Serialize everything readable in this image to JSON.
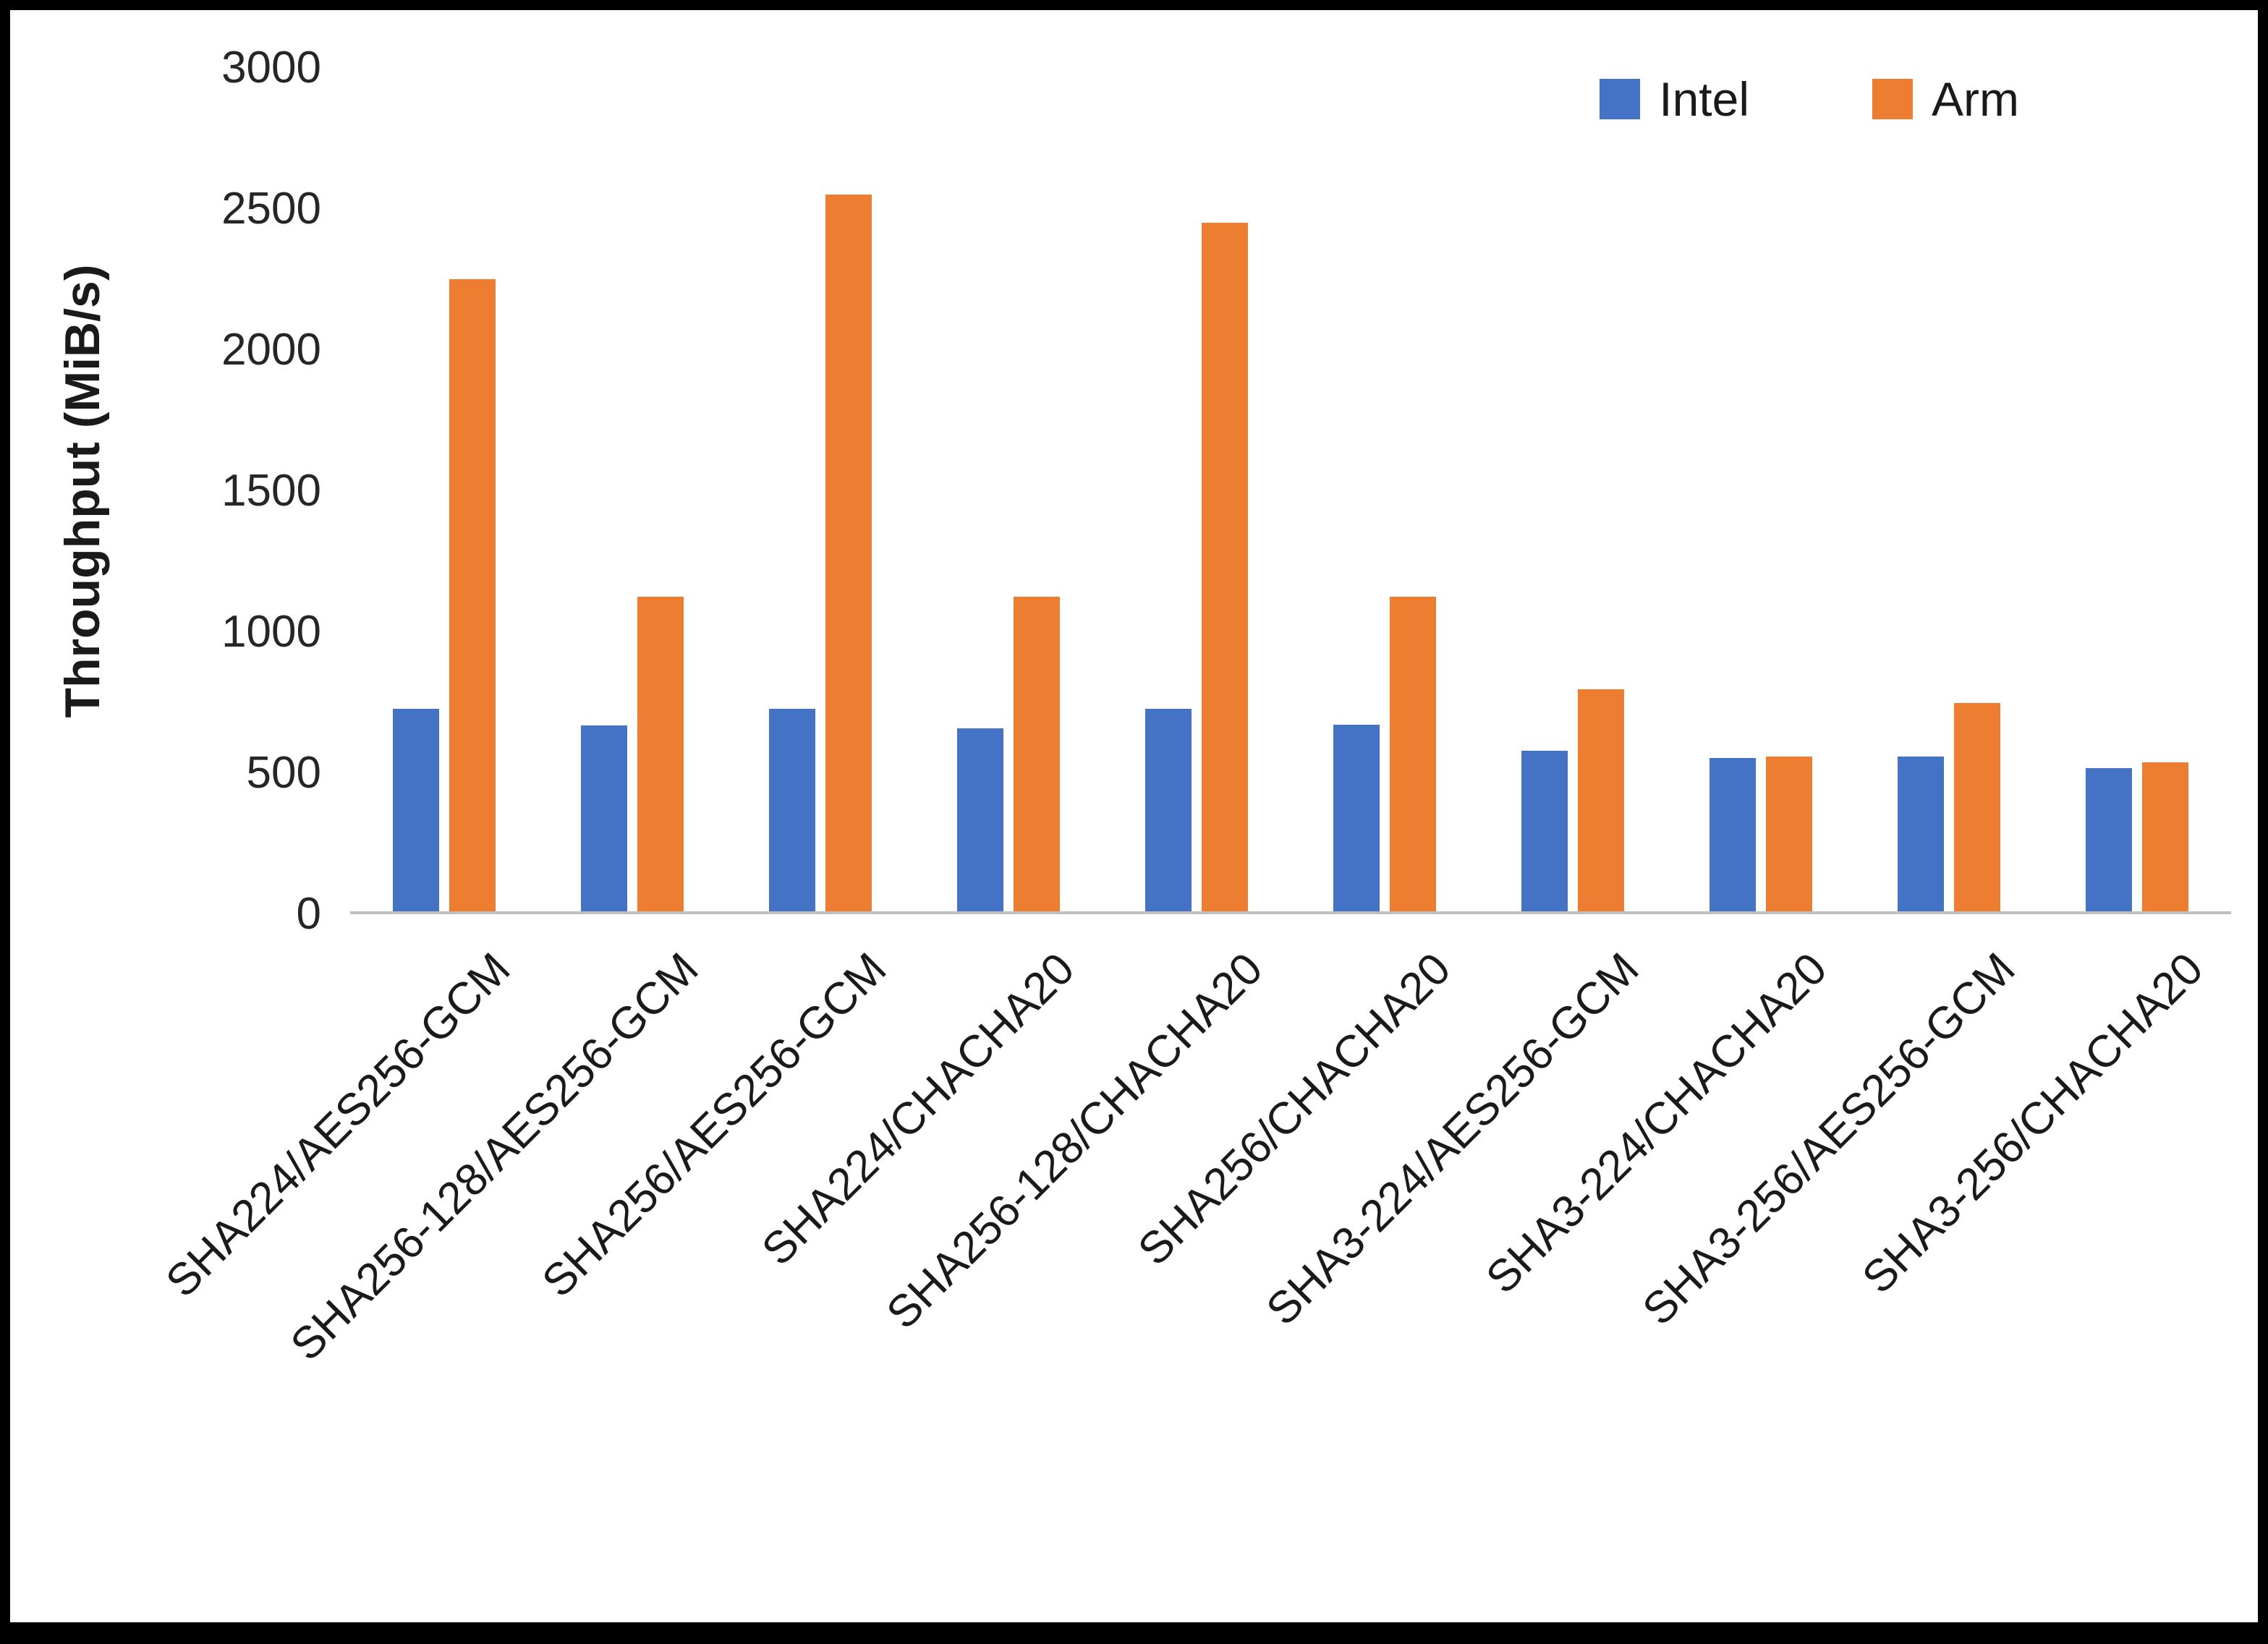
{
  "chart_data": {
    "type": "bar",
    "title": "",
    "xlabel": "",
    "ylabel": "Throughput (MiB/s)",
    "ylim": [
      0,
      3000
    ],
    "yticks": [
      0,
      500,
      1000,
      1500,
      2000,
      2500,
      3000
    ],
    "grid": false,
    "legend_position": "top-right",
    "categories": [
      "SHA224/AES256-GCM",
      "SHA256-128/AES256-GCM",
      "SHA256/AES256-GCM",
      "SHA224/CHACHA20",
      "SHA256-128/CHACHA20",
      "SHA256/CHACHA20",
      "SHA3-224/AES256-GCM",
      "SHA3-224/CHACHA20",
      "SHA3-256/AES256-GCM",
      "SHA3-256/CHACHA20"
    ],
    "series": [
      {
        "name": "Intel",
        "color": "#4472C4",
        "values": [
          720,
          660,
          720,
          650,
          720,
          665,
          570,
          545,
          550,
          510
        ]
      },
      {
        "name": "Arm",
        "color": "#ED7D31",
        "values": [
          2250,
          1120,
          2550,
          1120,
          2450,
          1120,
          790,
          550,
          740,
          530
        ]
      }
    ]
  },
  "colors": {
    "intel": "#4472C4",
    "arm": "#ED7D31",
    "axis_line": "#BFBFBF",
    "tick_text": "#262626"
  }
}
